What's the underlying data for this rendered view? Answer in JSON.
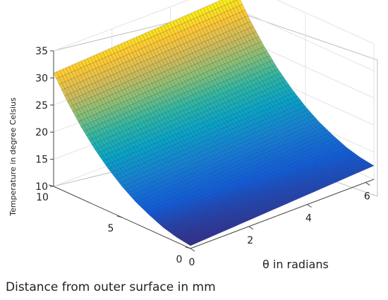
{
  "chart_data": {
    "type": "surface",
    "title": "",
    "xlabel": "θ in radians",
    "ylabel": "Distance from outer surface in mm",
    "zlabel": "Temperature in degree Celsius",
    "xlim": [
      0,
      6.2832
    ],
    "ylim": [
      0,
      10
    ],
    "zlim": [
      10,
      35
    ],
    "x_ticks": [
      "0",
      "2",
      "4",
      "6"
    ],
    "y_ticks": [
      "0",
      "5",
      "10"
    ],
    "z_ticks": [
      "10",
      "15",
      "20",
      "25",
      "30",
      "35"
    ],
    "temperature_vs_distance": {
      "distance_mm": [
        0,
        1,
        2,
        3,
        4,
        5,
        6,
        7,
        8,
        9,
        10
      ],
      "temperature_C": [
        10.5,
        10.9,
        11.6,
        12.7,
        14.0,
        15.7,
        17.8,
        20.3,
        23.3,
        26.8,
        30.9
      ]
    },
    "theta_variation": "temperature increases slightly with θ (about +2 °C from θ=0 to θ=2π)",
    "grid": true,
    "colormap": [
      "#352a87",
      "#0f5cdd",
      "#1481d6",
      "#06a4ca",
      "#2eb7a4",
      "#87bf77",
      "#d1bb59",
      "#fec832",
      "#f9fb0e"
    ]
  }
}
